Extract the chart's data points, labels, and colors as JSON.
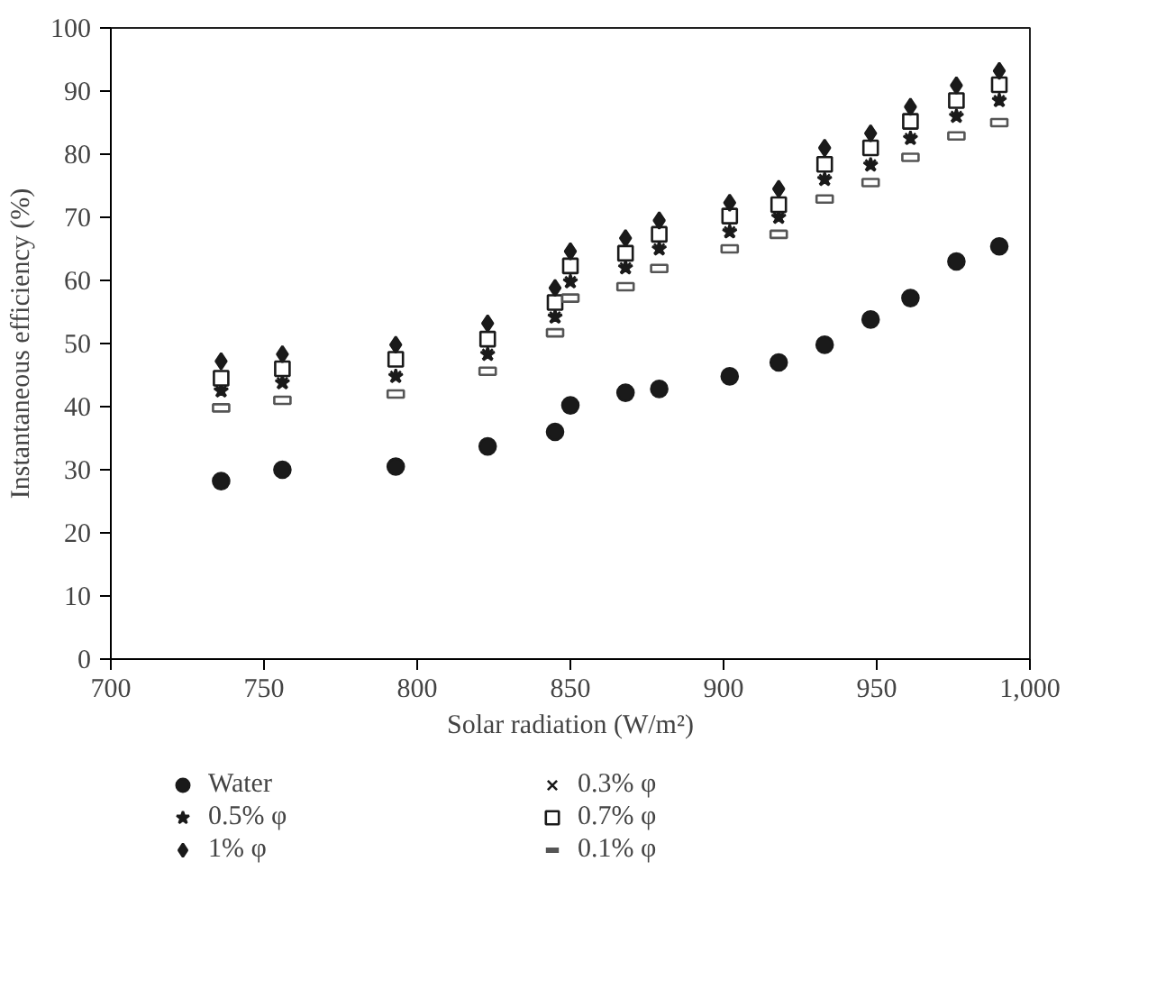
{
  "chart_data": {
    "type": "scatter",
    "xlabel": "Solar radiation (W/m²)",
    "ylabel": "Instantaneous efficiency (%)",
    "x": [
      736,
      756,
      793,
      823,
      845,
      850,
      868,
      879,
      902,
      918,
      933,
      948,
      961,
      976,
      990
    ],
    "xlim": [
      700,
      1000
    ],
    "xticks": [
      700,
      750,
      800,
      850,
      900,
      950,
      {
        "value": 1000,
        "label": "1,000"
      }
    ],
    "ylim": [
      0,
      100
    ],
    "yticks": [
      0,
      10,
      20,
      30,
      40,
      50,
      60,
      70,
      80,
      90,
      100
    ],
    "grid": false,
    "legend": "bottom",
    "series": [
      {
        "name": "Water",
        "color": "#1a1a1a",
        "marker": "circle",
        "values": [
          28.2,
          30,
          30.5,
          33.7,
          36,
          40.2,
          42.2,
          42.8,
          44.8,
          47,
          49.8,
          53.8,
          57.2,
          63,
          65.4
        ]
      },
      {
        "name": "0.3% φ",
        "color": "#1a1a1a",
        "marker": "cross",
        "values": [
          42.5,
          43.8,
          44.8,
          48.3,
          54.2,
          59.8,
          62,
          65,
          67.7,
          70,
          76,
          78.3,
          82.5,
          86,
          88.5
        ]
      },
      {
        "name": "0.5% φ",
        "color": "#1a1a1a",
        "marker": "star",
        "values": [
          42.5,
          43.8,
          44.8,
          48.3,
          54.2,
          59.8,
          62,
          65,
          67.7,
          70,
          76,
          78.3,
          82.5,
          86,
          88.5
        ]
      },
      {
        "name": "0.7% φ",
        "color": "#1a1a1a",
        "marker": "square",
        "values": [
          44.5,
          46,
          47.5,
          50.7,
          56.5,
          62.3,
          64.3,
          67.3,
          70.2,
          72,
          78.4,
          81,
          85.2,
          88.5,
          91
        ]
      },
      {
        "name": "1% φ",
        "color": "#1a1a1a",
        "marker": "diamond",
        "values": [
          47.2,
          48.3,
          49.8,
          53.2,
          58.8,
          64.6,
          66.7,
          69.5,
          72.3,
          74.5,
          81,
          83.3,
          87.5,
          90.9,
          93.2
        ]
      },
      {
        "name": "0.1% φ",
        "color": "#555555",
        "values": [
          39.8,
          41,
          42,
          45.6,
          51.7,
          57.2,
          59,
          61.9,
          65,
          67.3,
          72.9,
          75.5,
          79.5,
          82.9,
          85
        ]
      }
    ]
  }
}
